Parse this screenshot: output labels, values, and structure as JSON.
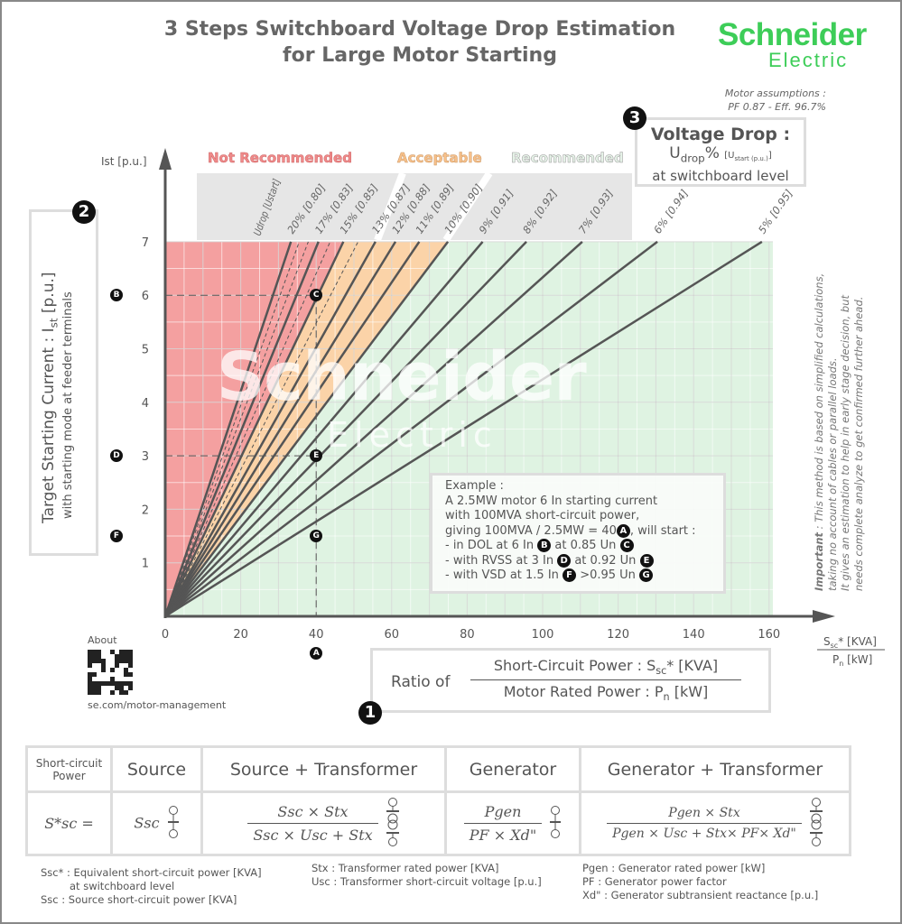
{
  "title_line1": "3 Steps Switchboard Voltage Drop Estimation",
  "title_line2": "for Large Motor Starting",
  "logo": {
    "brand": "Schneider",
    "sub": "Electric",
    "color": "#3dcd58"
  },
  "assumptions": {
    "line1": "Motor assumptions :",
    "line2": "PF 0.87 - Eff. 96.7%"
  },
  "steps": {
    "one": "1",
    "two": "2",
    "three": "3"
  },
  "voltage_drop_box": {
    "title": "Voltage Drop :",
    "udrop": "U",
    "udrop_sub": "drop",
    "pct": "%",
    "ustart": "[U",
    "ustart_sub": "start (p.u.)",
    "ustart_end": "]",
    "line3": "at switchboard level"
  },
  "zones": {
    "not_recommended": "Not Recommended",
    "acceptable": "Acceptable",
    "recommended": "Recommended"
  },
  "colors": {
    "red_zone": "#f4a0a0",
    "orange_zone": "#fbd3a8",
    "green_zone": "#dff3e2",
    "lines": "#555555",
    "band": "#e6e6e6"
  },
  "left_box": {
    "line1": "Target Starting Current : I",
    "line1_sub": "st",
    "line1_end": " [p.u.]",
    "line2": "with starting mode at feeder terminals"
  },
  "ratio_box": {
    "prefix": "Ratio of",
    "numerator": "Short-Circuit Power : S",
    "num_sub": "sc",
    "num_end": "* [KVA]",
    "denominator": "Motor Rated Power : P",
    "den_sub": "n",
    "den_end": " [kW]"
  },
  "about": {
    "label": "About",
    "url": "se.com/motor-management"
  },
  "note": {
    "bold": "Important",
    "line1": " : This method is based on simplified calculations,",
    "line2": "taking no account of cables or parallel loads.",
    "line3": "It gives an estimation to help in early stage decision, but",
    "line4": "needs complete analyze to get confirmed further ahead."
  },
  "example": {
    "l1": "Example :",
    "l2": "A 2.5MW motor 6 In starting current",
    "l3": "with 100MVA short-circuit power,",
    "l4": "giving 100MVA / 2.5MW = 40",
    "l4b": ", will start :",
    "l5": "- in DOL at 6 In",
    "l5b": "at 0.85 Un",
    "l6": "- with RVSS at 3 In",
    "l6b": "at 0.92 Un",
    "l7": "- with VSD at 1.5 In",
    "l7b": ">0.95 Un"
  },
  "chart_data": {
    "type": "line",
    "xlabel": "Ssc* [KVA] / Pn [kW]",
    "ylabel": "Ist [p.u.]",
    "xlim": [
      0,
      161
    ],
    "ylim": [
      0,
      7
    ],
    "xticks": [
      0,
      20,
      40,
      60,
      80,
      100,
      120,
      140,
      160
    ],
    "yticks": [
      1,
      2,
      3,
      4,
      5,
      6,
      7
    ],
    "grid": true,
    "line_header": "Udrop [Ustart]",
    "series": [
      {
        "name": "20% [0.80]",
        "x": [
          0,
          33.3
        ],
        "y": [
          0,
          7
        ],
        "style": "solid"
      },
      {
        "name": "",
        "x": [
          0,
          35.5
        ],
        "y": [
          0,
          7
        ],
        "style": "dashed"
      },
      {
        "name": "",
        "x": [
          0,
          37.9
        ],
        "y": [
          0,
          7
        ],
        "style": "dashed"
      },
      {
        "name": "17% [0.83]",
        "x": [
          0,
          40.6
        ],
        "y": [
          0,
          7
        ],
        "style": "solid"
      },
      {
        "name": "",
        "x": [
          0,
          43.7
        ],
        "y": [
          0,
          7
        ],
        "style": "dashed"
      },
      {
        "name": "15% [0.85]",
        "x": [
          0,
          47.2
        ],
        "y": [
          0,
          7
        ],
        "style": "solid"
      },
      {
        "name": "",
        "x": [
          0,
          51.1
        ],
        "y": [
          0,
          7
        ],
        "style": "dashed"
      },
      {
        "name": "13% [0.87]",
        "x": [
          0,
          55.7
        ],
        "y": [
          0,
          7
        ],
        "style": "solid"
      },
      {
        "name": "12% [0.88]",
        "x": [
          0,
          61.0
        ],
        "y": [
          0,
          7
        ],
        "style": "solid"
      },
      {
        "name": "11% [0.89]",
        "x": [
          0,
          67.3
        ],
        "y": [
          0,
          7
        ],
        "style": "solid"
      },
      {
        "name": "10% [0.90]",
        "x": [
          0,
          74.9
        ],
        "y": [
          0,
          7
        ],
        "style": "solid"
      },
      {
        "name": "9% [0.91]",
        "x": [
          0,
          84.1
        ],
        "y": [
          0,
          7
        ],
        "style": "solid"
      },
      {
        "name": "8% [0.92]",
        "x": [
          0,
          95.7
        ],
        "y": [
          0,
          7
        ],
        "style": "solid"
      },
      {
        "name": "7% [0.93]",
        "x": [
          0,
          110.5
        ],
        "y": [
          0,
          7
        ],
        "style": "solid"
      },
      {
        "name": "6% [0.94]",
        "x": [
          0,
          130.4
        ],
        "y": [
          0,
          7
        ],
        "style": "solid"
      },
      {
        "name": "5% [0.95]",
        "x": [
          0,
          158.1
        ],
        "y": [
          0,
          7
        ],
        "style": "solid"
      }
    ],
    "zone_bounds": {
      "red_max_line": "15% [0.85]",
      "orange_max_line": "10% [0.90]"
    },
    "points": [
      {
        "label": "A",
        "x": 40,
        "y": 0,
        "where": "x-axis"
      },
      {
        "label": "B",
        "x": 0,
        "y": 6,
        "where": "y-axis"
      },
      {
        "label": "C",
        "x": 40,
        "y": 6
      },
      {
        "label": "D",
        "x": 0,
        "y": 3,
        "where": "y-axis"
      },
      {
        "label": "E",
        "x": 40,
        "y": 3
      },
      {
        "label": "F",
        "x": 0,
        "y": 1.5,
        "where": "y-axis"
      },
      {
        "label": "G",
        "x": 40,
        "y": 1.5
      }
    ]
  },
  "table": {
    "headers": [
      "Short-circuit Power",
      "Source",
      "Source + Transformer",
      "Generator",
      "Generator + Transformer"
    ],
    "row_label": "S*sc =",
    "source": "Ssc",
    "src_tx": {
      "num": "Ssc × Stx",
      "den": "Ssc × Usc + Stx"
    },
    "gen": {
      "num": "Pgen",
      "den": "PF × Xd\""
    },
    "gen_tx": {
      "num": "Pgen × Stx",
      "den": "Pgen × Usc + Stx× PF× Xd\""
    }
  },
  "legend": {
    "c1": [
      "Ssc* : Equivalent short-circuit power [KVA]",
      "at switchboard level",
      "Ssc : Source short-circuit power [KVA]"
    ],
    "c2": [
      "Stx : Transformer rated power [KVA]",
      "Usc : Transformer short-circuit voltage [p.u.]"
    ],
    "c3": [
      "Pgen : Generator rated power [kW]",
      "PF : Generator power factor",
      "Xd\" : Generator subtransient reactance [p.u.]"
    ]
  }
}
